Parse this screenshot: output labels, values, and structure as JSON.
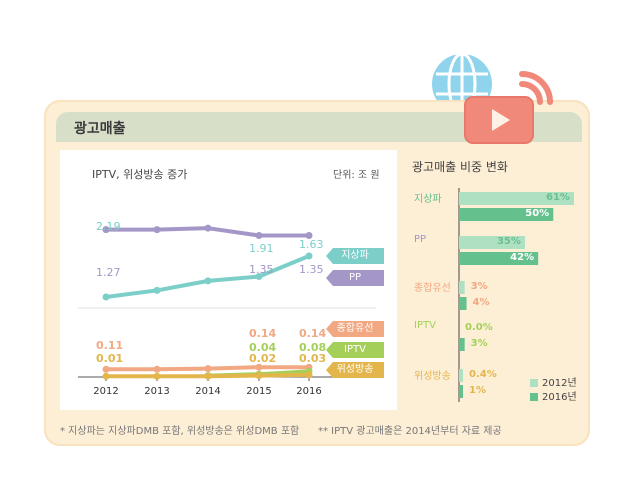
{
  "header_title": "광고매출",
  "left_title": "IPTV, 위성방송 증가",
  "unit": "단위: 조 원",
  "right_title": "광고매출 비중 변화",
  "footnote_1": "* 지상파는 지상파DMB 포함, 위성방송은 위성DMB 포함",
  "footnote_2": "** IPTV 광고매출은 2014년부터 자료 제공",
  "colors": {
    "terrestrial": "#7ccec9",
    "pp": "#a497c8",
    "cable": "#f1a883",
    "iptv": "#a4d05a",
    "satellite": "#e3b64b",
    "light_green": "#aee0c2",
    "dark_green": "#64c18e",
    "youtube": "#f1897a",
    "globe": "#8fd3ed"
  },
  "chart_data": [
    {
      "type": "line",
      "x": [
        "2012",
        "2013",
        "2014",
        "2015",
        "2016"
      ],
      "series": [
        {
          "name": "지상파",
          "values": [
            2.19,
            2.1,
            1.97,
            1.91,
            1.63
          ],
          "labels": [
            "2.19",
            "",
            "",
            "1.91",
            "1.63"
          ]
        },
        {
          "name": "PP",
          "values": [
            1.27,
            1.27,
            1.25,
            1.35,
            1.35
          ],
          "labels": [
            "1.27",
            "",
            "",
            "1.35",
            "1.35"
          ]
        },
        {
          "name": "종합유선",
          "values": [
            0.11,
            0.11,
            0.12,
            0.14,
            0.14
          ],
          "labels": [
            "0.11",
            "",
            "",
            "0.14",
            "0.14"
          ]
        },
        {
          "name": "IPTV",
          "values": [
            null,
            null,
            0.02,
            0.04,
            0.08
          ],
          "labels": [
            "",
            "",
            "",
            "0.04",
            "0.08"
          ]
        },
        {
          "name": "위성방송",
          "values": [
            0.01,
            0.01,
            0.01,
            0.02,
            0.03
          ],
          "labels": [
            "0.01",
            "",
            "",
            "0.02",
            "0.03"
          ]
        }
      ]
    },
    {
      "type": "bar",
      "categories": [
        "지상파",
        "PP",
        "종합유선",
        "IPTV",
        "위성방송"
      ],
      "series": [
        {
          "name": "2012년",
          "values": [
            61,
            35,
            3,
            0.0,
            0.4
          ],
          "labels": [
            "61%",
            "35%",
            "3%",
            "0.0%",
            "0.4%"
          ]
        },
        {
          "name": "2016년",
          "values": [
            50,
            42,
            4,
            3,
            1
          ],
          "labels": [
            "50%",
            "42%",
            "4%",
            "3%",
            "1%"
          ]
        }
      ]
    }
  ]
}
